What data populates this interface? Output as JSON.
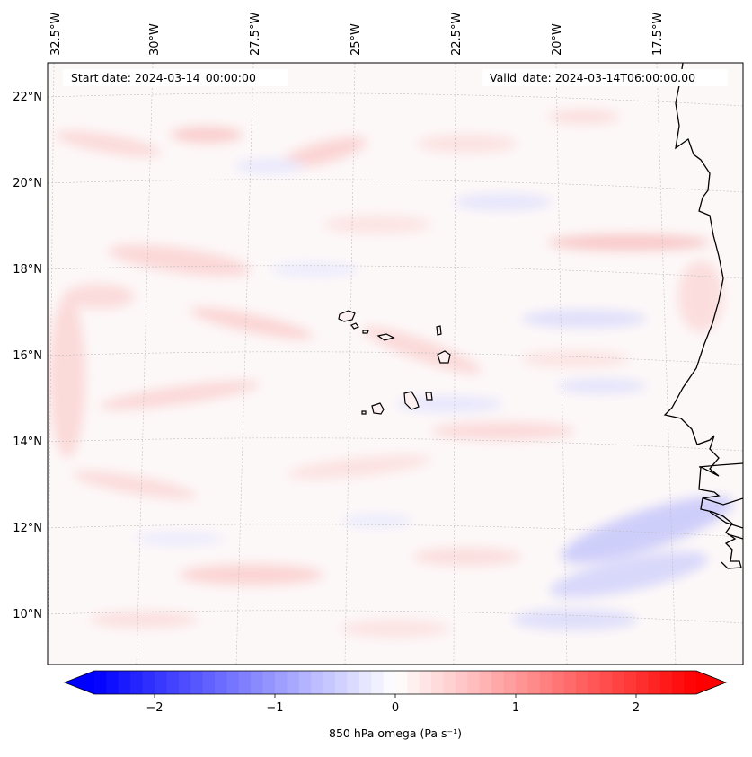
{
  "map": {
    "header": {
      "start_date": "Start date: 2024-03-14_00:00:00",
      "valid_date": "Valid_date: 2024-03-14T06:00:00.00"
    },
    "lon_labels": [
      "32.5°W",
      "30°W",
      "27.5°W",
      "25°W",
      "22.5°W",
      "20°W",
      "17.5°W"
    ],
    "lat_labels": [
      "22°N",
      "20°N",
      "18°N",
      "16°N",
      "14°N",
      "12°N",
      "10°N"
    ],
    "colorbar": {
      "ticks": [
        "−2",
        "−1",
        "0",
        "1",
        "2"
      ],
      "label": "850 hPa omega (Pa s⁻¹)",
      "range": [
        -2.6,
        2.6
      ],
      "low_color": "#0000ff",
      "mid_color": "#ffffff",
      "high_color": "#ff0000"
    },
    "features": [
      "Cabo Verde islands",
      "West African coastline"
    ]
  }
}
